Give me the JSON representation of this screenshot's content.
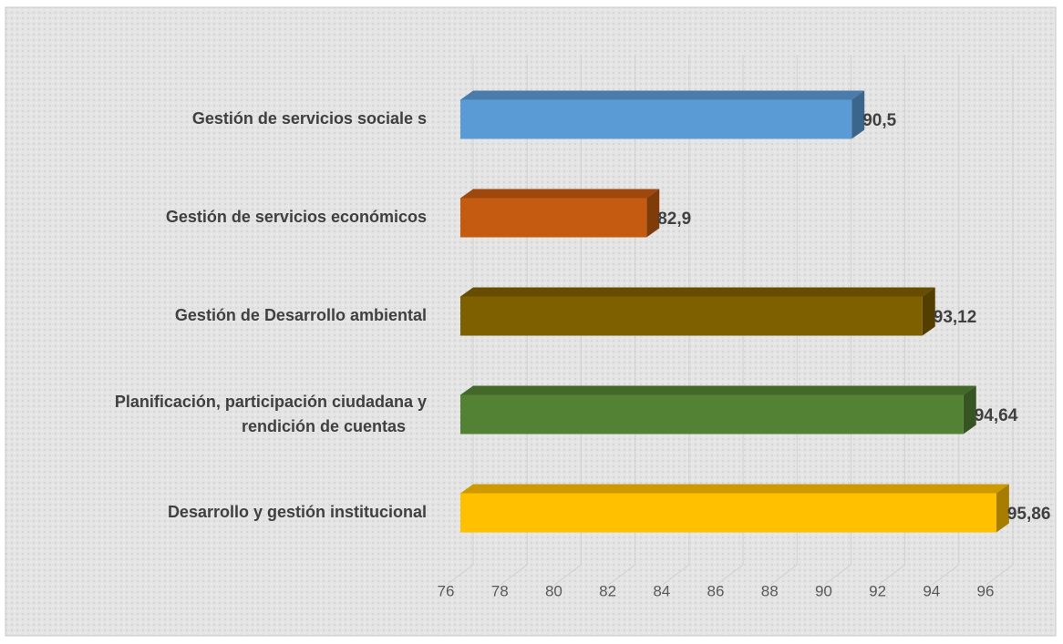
{
  "chart_data": {
    "type": "bar3d_horizontal",
    "categories": [
      "Gestión de servicios sociale s",
      "Gestión de servicios económicos",
      "Gestión de Desarrollo ambiental",
      "Planificación, participación ciudadana y rendición de cuentas",
      "Desarrollo y gestión institucional"
    ],
    "values": [
      90.5,
      82.9,
      93.12,
      94.64,
      95.86
    ],
    "value_labels": [
      "90,5",
      "82,9",
      "93,12",
      "94,64",
      "95,86"
    ],
    "colors": [
      "#5b9bd5",
      "#c55a11",
      "#7f6000",
      "#548235",
      "#ffc000"
    ],
    "xlim": [
      76,
      98
    ],
    "xticks": [
      76,
      78,
      80,
      82,
      84,
      86,
      88,
      90,
      92,
      94,
      96
    ],
    "grid": true
  }
}
